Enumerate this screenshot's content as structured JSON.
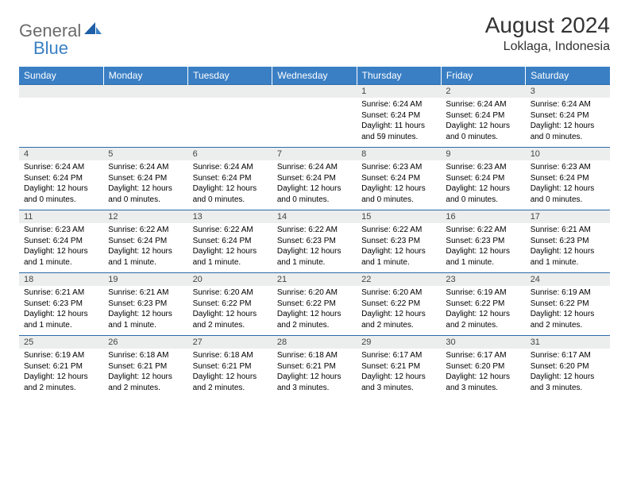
{
  "brand": {
    "general": "General",
    "blue": "Blue"
  },
  "title": {
    "month": "August 2024",
    "location": "Loklaga, Indonesia"
  },
  "style": {
    "header_bg": "#3a7fc4",
    "header_fg": "#ffffff",
    "daynum_bg": "#eceded",
    "rule_color": "#2c6aa8",
    "logo_gray": "#6b6b6b",
    "logo_blue": "#3a7fc4",
    "title_fontsize": 28,
    "location_fontsize": 16,
    "weekday_fontsize": 12,
    "daynum_fontsize": 11,
    "detail_fontsize": 10
  },
  "weekdays": [
    "Sunday",
    "Monday",
    "Tuesday",
    "Wednesday",
    "Thursday",
    "Friday",
    "Saturday"
  ],
  "weeks": [
    [
      null,
      null,
      null,
      null,
      {
        "n": "1",
        "sr": "Sunrise: 6:24 AM",
        "ss": "Sunset: 6:24 PM",
        "dl": "Daylight: 11 hours and 59 minutes."
      },
      {
        "n": "2",
        "sr": "Sunrise: 6:24 AM",
        "ss": "Sunset: 6:24 PM",
        "dl": "Daylight: 12 hours and 0 minutes."
      },
      {
        "n": "3",
        "sr": "Sunrise: 6:24 AM",
        "ss": "Sunset: 6:24 PM",
        "dl": "Daylight: 12 hours and 0 minutes."
      }
    ],
    [
      {
        "n": "4",
        "sr": "Sunrise: 6:24 AM",
        "ss": "Sunset: 6:24 PM",
        "dl": "Daylight: 12 hours and 0 minutes."
      },
      {
        "n": "5",
        "sr": "Sunrise: 6:24 AM",
        "ss": "Sunset: 6:24 PM",
        "dl": "Daylight: 12 hours and 0 minutes."
      },
      {
        "n": "6",
        "sr": "Sunrise: 6:24 AM",
        "ss": "Sunset: 6:24 PM",
        "dl": "Daylight: 12 hours and 0 minutes."
      },
      {
        "n": "7",
        "sr": "Sunrise: 6:24 AM",
        "ss": "Sunset: 6:24 PM",
        "dl": "Daylight: 12 hours and 0 minutes."
      },
      {
        "n": "8",
        "sr": "Sunrise: 6:23 AM",
        "ss": "Sunset: 6:24 PM",
        "dl": "Daylight: 12 hours and 0 minutes."
      },
      {
        "n": "9",
        "sr": "Sunrise: 6:23 AM",
        "ss": "Sunset: 6:24 PM",
        "dl": "Daylight: 12 hours and 0 minutes."
      },
      {
        "n": "10",
        "sr": "Sunrise: 6:23 AM",
        "ss": "Sunset: 6:24 PM",
        "dl": "Daylight: 12 hours and 0 minutes."
      }
    ],
    [
      {
        "n": "11",
        "sr": "Sunrise: 6:23 AM",
        "ss": "Sunset: 6:24 PM",
        "dl": "Daylight: 12 hours and 1 minute."
      },
      {
        "n": "12",
        "sr": "Sunrise: 6:22 AM",
        "ss": "Sunset: 6:24 PM",
        "dl": "Daylight: 12 hours and 1 minute."
      },
      {
        "n": "13",
        "sr": "Sunrise: 6:22 AM",
        "ss": "Sunset: 6:24 PM",
        "dl": "Daylight: 12 hours and 1 minute."
      },
      {
        "n": "14",
        "sr": "Sunrise: 6:22 AM",
        "ss": "Sunset: 6:23 PM",
        "dl": "Daylight: 12 hours and 1 minute."
      },
      {
        "n": "15",
        "sr": "Sunrise: 6:22 AM",
        "ss": "Sunset: 6:23 PM",
        "dl": "Daylight: 12 hours and 1 minute."
      },
      {
        "n": "16",
        "sr": "Sunrise: 6:22 AM",
        "ss": "Sunset: 6:23 PM",
        "dl": "Daylight: 12 hours and 1 minute."
      },
      {
        "n": "17",
        "sr": "Sunrise: 6:21 AM",
        "ss": "Sunset: 6:23 PM",
        "dl": "Daylight: 12 hours and 1 minute."
      }
    ],
    [
      {
        "n": "18",
        "sr": "Sunrise: 6:21 AM",
        "ss": "Sunset: 6:23 PM",
        "dl": "Daylight: 12 hours and 1 minute."
      },
      {
        "n": "19",
        "sr": "Sunrise: 6:21 AM",
        "ss": "Sunset: 6:23 PM",
        "dl": "Daylight: 12 hours and 1 minute."
      },
      {
        "n": "20",
        "sr": "Sunrise: 6:20 AM",
        "ss": "Sunset: 6:22 PM",
        "dl": "Daylight: 12 hours and 2 minutes."
      },
      {
        "n": "21",
        "sr": "Sunrise: 6:20 AM",
        "ss": "Sunset: 6:22 PM",
        "dl": "Daylight: 12 hours and 2 minutes."
      },
      {
        "n": "22",
        "sr": "Sunrise: 6:20 AM",
        "ss": "Sunset: 6:22 PM",
        "dl": "Daylight: 12 hours and 2 minutes."
      },
      {
        "n": "23",
        "sr": "Sunrise: 6:19 AM",
        "ss": "Sunset: 6:22 PM",
        "dl": "Daylight: 12 hours and 2 minutes."
      },
      {
        "n": "24",
        "sr": "Sunrise: 6:19 AM",
        "ss": "Sunset: 6:22 PM",
        "dl": "Daylight: 12 hours and 2 minutes."
      }
    ],
    [
      {
        "n": "25",
        "sr": "Sunrise: 6:19 AM",
        "ss": "Sunset: 6:21 PM",
        "dl": "Daylight: 12 hours and 2 minutes."
      },
      {
        "n": "26",
        "sr": "Sunrise: 6:18 AM",
        "ss": "Sunset: 6:21 PM",
        "dl": "Daylight: 12 hours and 2 minutes."
      },
      {
        "n": "27",
        "sr": "Sunrise: 6:18 AM",
        "ss": "Sunset: 6:21 PM",
        "dl": "Daylight: 12 hours and 2 minutes."
      },
      {
        "n": "28",
        "sr": "Sunrise: 6:18 AM",
        "ss": "Sunset: 6:21 PM",
        "dl": "Daylight: 12 hours and 3 minutes."
      },
      {
        "n": "29",
        "sr": "Sunrise: 6:17 AM",
        "ss": "Sunset: 6:21 PM",
        "dl": "Daylight: 12 hours and 3 minutes."
      },
      {
        "n": "30",
        "sr": "Sunrise: 6:17 AM",
        "ss": "Sunset: 6:20 PM",
        "dl": "Daylight: 12 hours and 3 minutes."
      },
      {
        "n": "31",
        "sr": "Sunrise: 6:17 AM",
        "ss": "Sunset: 6:20 PM",
        "dl": "Daylight: 12 hours and 3 minutes."
      }
    ]
  ]
}
